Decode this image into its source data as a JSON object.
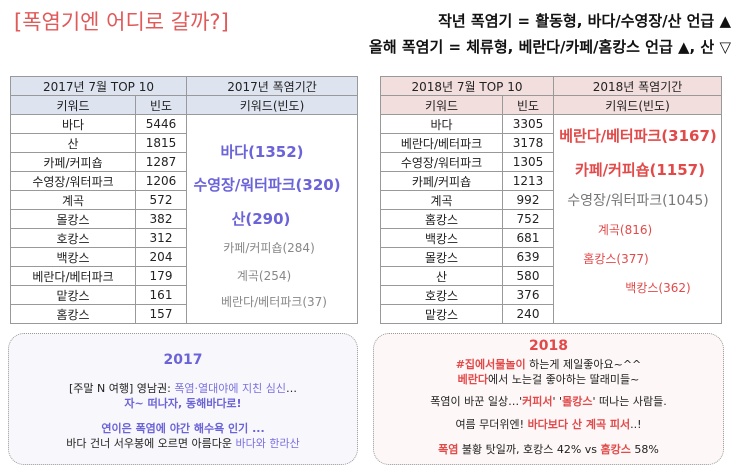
{
  "header": {
    "title": "[폭염기엔 어디로 갈까?]",
    "subtitle1": "작년 폭염기 = 활동형, 바다/수영장/산 언급 ▲",
    "subtitle2": "올해 폭염기 = 체류형, 베란다/카페/홈캉스 언급 ▲, 산 ▽"
  },
  "table2017": {
    "title_left": "2017년 7월 TOP 10",
    "title_right": "2017년 폭염기간",
    "col_keyword": "키워드",
    "col_freq": "빈도",
    "col_right": "키워드(빈도)",
    "rows": [
      {
        "k": "바다",
        "v": "5446"
      },
      {
        "k": "산",
        "v": "1815"
      },
      {
        "k": "카페/커피숍",
        "v": "1287"
      },
      {
        "k": "수영장/워터파크",
        "v": "1206"
      },
      {
        "k": "계곡",
        "v": "572"
      },
      {
        "k": "몰캉스",
        "v": "382"
      },
      {
        "k": "호캉스",
        "v": "312"
      },
      {
        "k": "백캉스",
        "v": "204"
      },
      {
        "k": "베란다/베터파크",
        "v": "179"
      },
      {
        "k": "맡캉스",
        "v": "161"
      },
      {
        "k": "홈캉스",
        "v": "157"
      }
    ],
    "cloud": [
      "바다(1352)",
      "수영장/워터파크(320)",
      "산(290)",
      "카페/커피숍(284)",
      "계곡(254)",
      "베란다/베터파크(37)"
    ]
  },
  "table2018": {
    "title_left": "2018년 7월 TOP 10",
    "title_right": "2018년 폭염기간",
    "col_keyword": "키워드",
    "col_freq": "빈도",
    "col_right": "키워드(빈도)",
    "rows": [
      {
        "k": "바다",
        "v": "3305"
      },
      {
        "k": "베란다/베터파크",
        "v": "3178"
      },
      {
        "k": "수영장/워터파크",
        "v": "1305"
      },
      {
        "k": "카페/커피숍",
        "v": "1213"
      },
      {
        "k": "계곡",
        "v": "992"
      },
      {
        "k": "홈캉스",
        "v": "752"
      },
      {
        "k": "백캉스",
        "v": "681"
      },
      {
        "k": "몰캉스",
        "v": "639"
      },
      {
        "k": "산",
        "v": "580"
      },
      {
        "k": "호캉스",
        "v": "376"
      },
      {
        "k": "맡캉스",
        "v": "240"
      }
    ],
    "cloud": [
      "베란다/베터파크(3167)",
      "카페/커피숍(1157)",
      "수영장/워터파크(1045)",
      "계곡(816)",
      "홈캉스(377)",
      "백캉스(362)"
    ]
  },
  "box2017": {
    "year": "2017",
    "l1a": "[주말 N 여행] 영남권: ",
    "l1b": "폭염·열대야에 지친 심신",
    "l1c": "…",
    "l2": "자~ 떠나자, 동해바다로!",
    "l3": "연이은 폭염에 야간 해수욕 인기 ...",
    "l4a": "바다 건너 서우봉에 오르면 아름다운 ",
    "l4b": "바다와 한라산"
  },
  "box2018": {
    "year": "2018",
    "l1a": "#집에서물놀이",
    "l1b": " 하는게 제일좋아요~^^",
    "l2a": "베란다",
    "l2b": "에서 노는걸 좋아하는 딸래미들~",
    "l3a": "폭염이 바꾼 일상…'",
    "l3b": "커피서",
    "l3c": "' '",
    "l3d": "몰캉스",
    "l3e": "' 떠나는 사람들.",
    "l4a": "여름 무더위엔! ",
    "l4b": "바다보다 산 계곡 피서",
    "l4c": "..!",
    "l5a": "폭염",
    "l5b": " 불황 탓일까, 호캉스 42% vs ",
    "l5c": "홈캉스",
    "l5d": " 58%"
  }
}
